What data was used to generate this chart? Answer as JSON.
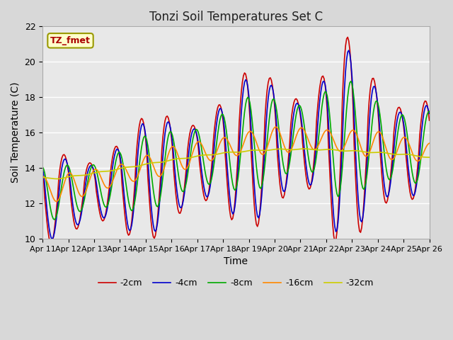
{
  "title": "Tonzi Soil Temperatures Set C",
  "xlabel": "Time",
  "ylabel": "Soil Temperature (C)",
  "ylim": [
    10,
    22
  ],
  "xtick_labels": [
    "Apr 11",
    "Apr 12",
    "Apr 13",
    "Apr 14",
    "Apr 15",
    "Apr 16",
    "Apr 17",
    "Apr 18",
    "Apr 19",
    "Apr 20",
    "Apr 21",
    "Apr 22",
    "Apr 23",
    "Apr 24",
    "Apr 25",
    "Apr 26"
  ],
  "xtick_positions": [
    0,
    24,
    48,
    72,
    96,
    120,
    144,
    168,
    192,
    216,
    240,
    264,
    288,
    312,
    336,
    360
  ],
  "annotation_text": "TZ_fmet",
  "annotation_bg": "#ffffcc",
  "annotation_border": "#999900",
  "series": [
    {
      "label": "-2cm",
      "color": "#cc0000",
      "lw": 1.2
    },
    {
      "label": "-4cm",
      "color": "#0000cc",
      "lw": 1.2
    },
    {
      "label": "-8cm",
      "color": "#00aa00",
      "lw": 1.2
    },
    {
      "label": "-16cm",
      "color": "#ff8800",
      "lw": 1.2
    },
    {
      "label": "-32cm",
      "color": "#cccc00",
      "lw": 1.2
    }
  ]
}
